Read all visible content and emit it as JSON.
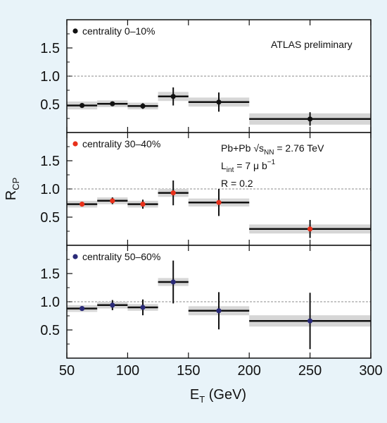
{
  "chart_data": {
    "type": "scatter",
    "xlabel": "E",
    "xlabel_sub": "T",
    "xlabel_unit": " (GeV)",
    "ylabel": "R",
    "ylabel_sub": "CP",
    "xlim": [
      50,
      300
    ],
    "ylim": [
      0,
      2.0
    ],
    "xticks": [
      50,
      100,
      150,
      200,
      250,
      300
    ],
    "yticks": [
      0.5,
      1.0,
      1.5
    ],
    "xtick_labels": [
      "50",
      "100",
      "150",
      "200",
      "250",
      "300"
    ],
    "ytick_labels": [
      "0.5",
      "1.0",
      "1.5"
    ],
    "reference_line": 1.0,
    "bin_edges": [
      50,
      75,
      100,
      125,
      150,
      200,
      300
    ],
    "x": [
      62.5,
      87.5,
      112.5,
      137.5,
      175,
      250
    ],
    "panels": [
      {
        "legend": "centrality 0–10%",
        "marker_color": "#111111",
        "y": [
          0.48,
          0.51,
          0.47,
          0.64,
          0.54,
          0.24
        ],
        "y_err": [
          0.03,
          0.04,
          0.05,
          0.16,
          0.17,
          0.12
        ],
        "sys_band": [
          0.07,
          0.06,
          0.06,
          0.08,
          0.08,
          0.1
        ],
        "annotations": [
          {
            "text": "ATLAS preliminary"
          }
        ]
      },
      {
        "legend": "centrality 30–40%",
        "marker_color": "#e8301a",
        "y": [
          0.73,
          0.79,
          0.73,
          0.93,
          0.76,
          0.29
        ],
        "y_err": [
          0.04,
          0.06,
          0.08,
          0.22,
          0.24,
          0.16
        ],
        "sys_band": [
          0.06,
          0.06,
          0.06,
          0.07,
          0.07,
          0.08
        ],
        "annotations": [
          {
            "text": "Pb+Pb √s",
            "sub": "NN",
            "after": " = 2.76 TeV"
          },
          {
            "text": "L",
            "sub": "int",
            "after": " = 7 μ b",
            "sup": "−1"
          },
          {
            "text": "R = 0.2"
          }
        ]
      },
      {
        "legend": "centrality 50–60%",
        "marker_color": "#2a2a78",
        "y": [
          0.88,
          0.94,
          0.9,
          1.35,
          0.84,
          0.66
        ],
        "y_err": [
          0.04,
          0.09,
          0.14,
          0.38,
          0.33,
          0.5
        ],
        "sys_band": [
          0.06,
          0.06,
          0.06,
          0.07,
          0.08,
          0.1
        ],
        "annotations": []
      }
    ],
    "colors": {
      "background": "#e8f3f9",
      "plot_area": "#ffffff",
      "band": "#d6d6d6",
      "line": "#111111",
      "reference": "#666666"
    }
  }
}
